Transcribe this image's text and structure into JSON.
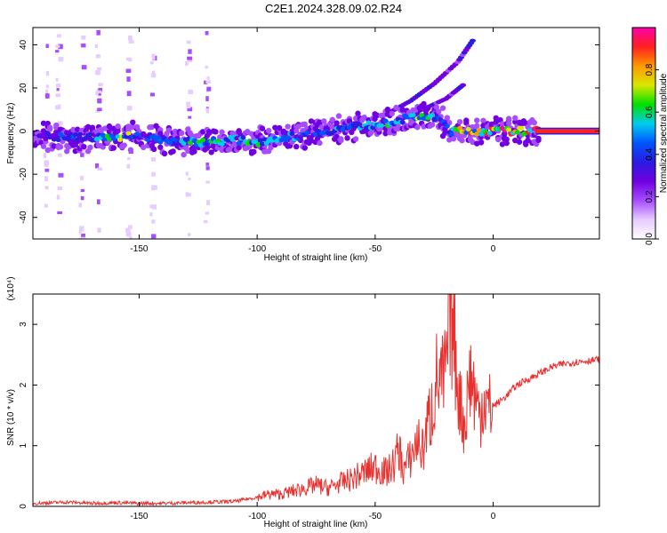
{
  "title": "C2E1.2024.328.09.02.R24",
  "colors": {
    "snr_line": "#e8312f",
    "colormap": [
      "#ffffff",
      "#e6ccff",
      "#a64dff",
      "#7000e0",
      "#2a1ce0",
      "#0055ff",
      "#00ccee",
      "#00e000",
      "#d8e800",
      "#ff9900",
      "#ff2020",
      "#ff00aa"
    ]
  },
  "chart_data": [
    {
      "type": "heatmap",
      "xlabel": "Height of straight line (km)",
      "ylabel": "Frequency (Hz)",
      "xlim": [
        -195,
        45
      ],
      "ylim": [
        -50,
        48
      ],
      "x_ticks": [
        -150,
        -100,
        -50,
        0
      ],
      "x_tick_labels": [
        "-150",
        "-100",
        "-50",
        "0"
      ],
      "y_ticks": [
        -40,
        -20,
        0,
        20,
        40
      ],
      "y_tick_labels": [
        "-40",
        "-20",
        "0",
        "20",
        "40"
      ],
      "colorbar": {
        "label": "Normalized spectral amplitude",
        "range": [
          0,
          1
        ],
        "ticks": [
          0,
          0.2,
          0.4,
          0.6,
          0.8
        ],
        "tick_labels": [
          "0.0",
          "0.2",
          "0.4",
          "0.6",
          "0.8"
        ]
      },
      "main_band": [
        {
          "x": -195,
          "f": -2,
          "amp": 0.35
        },
        {
          "x": -180,
          "f": -3,
          "amp": 0.45
        },
        {
          "x": -170,
          "f": -3,
          "amp": 0.5
        },
        {
          "x": -162,
          "f": -3,
          "amp": 0.85
        },
        {
          "x": -150,
          "f": -2,
          "amp": 0.5
        },
        {
          "x": -140,
          "f": -4,
          "amp": 0.45
        },
        {
          "x": -130,
          "f": -5,
          "amp": 0.55
        },
        {
          "x": -120,
          "f": -5,
          "amp": 0.6
        },
        {
          "x": -110,
          "f": -4,
          "amp": 0.5
        },
        {
          "x": -100,
          "f": -5,
          "amp": 0.65
        },
        {
          "x": -90,
          "f": -3,
          "amp": 0.5
        },
        {
          "x": -80,
          "f": -2,
          "amp": 0.45
        },
        {
          "x": -70,
          "f": 0,
          "amp": 0.45
        },
        {
          "x": -60,
          "f": 2,
          "amp": 0.5
        },
        {
          "x": -50,
          "f": 3,
          "amp": 0.55
        },
        {
          "x": -40,
          "f": 5,
          "amp": 0.55
        },
        {
          "x": -30,
          "f": 7,
          "amp": 0.75
        },
        {
          "x": -22,
          "f": 5,
          "amp": 0.5
        },
        {
          "x": -18,
          "f": 0,
          "amp": 0.6
        },
        {
          "x": -10,
          "f": 0,
          "amp": 0.85
        },
        {
          "x": 0,
          "f": 0,
          "amp": 0.9
        },
        {
          "x": 10,
          "f": 0,
          "amp": 0.9
        },
        {
          "x": 20,
          "f": 0,
          "amp": 0.95
        },
        {
          "x": 30,
          "f": 0,
          "amp": 0.95
        },
        {
          "x": 45,
          "f": 0,
          "amp": 0.95
        }
      ],
      "upper_arcs": [
        {
          "name": "",
          "points": [
            {
              "x": -45,
              "f": 8
            },
            {
              "x": -35,
              "f": 14
            },
            {
              "x": -25,
              "f": 22
            },
            {
              "x": -15,
              "f": 32
            },
            {
              "x": -8,
              "f": 43
            }
          ]
        },
        {
          "name": "",
          "points": [
            {
              "x": -40,
              "f": 5
            },
            {
              "x": -30,
              "f": 10
            },
            {
              "x": -20,
              "f": 15
            },
            {
              "x": -12,
              "f": 22
            }
          ]
        }
      ]
    },
    {
      "type": "line",
      "xlabel": "Height of straight line (km)",
      "ylabel": "SNR (10 * v/v)",
      "y_multiplier": "(x10⁴)",
      "xlim": [
        -195,
        45
      ],
      "ylim": [
        0,
        3.5
      ],
      "x_ticks": [
        -150,
        -100,
        -50,
        0
      ],
      "x_tick_labels": [
        "-150",
        "-100",
        "-50",
        "0"
      ],
      "y_ticks": [
        0,
        1,
        2,
        3
      ],
      "y_tick_labels": [
        "0",
        "1",
        "2",
        "3"
      ],
      "series": [
        {
          "values_x": [
            -195,
            -180,
            -170,
            -160,
            -150,
            -140,
            -130,
            -120,
            -110,
            -100,
            -95,
            -90,
            -85,
            -80,
            -75,
            -70,
            -65,
            -60,
            -55,
            -50,
            -45,
            -42,
            -40,
            -38,
            -35,
            -32,
            -30,
            -28,
            -26,
            -24,
            -22,
            -20,
            -18,
            -16,
            -14,
            -12,
            -10,
            -8,
            -6,
            -4,
            -2,
            0,
            5,
            10,
            15,
            20,
            25,
            30,
            35,
            40,
            45
          ],
          "values_y": [
            0.05,
            0.07,
            0.05,
            0.06,
            0.05,
            0.05,
            0.06,
            0.07,
            0.08,
            0.15,
            0.2,
            0.2,
            0.25,
            0.3,
            0.35,
            0.3,
            0.38,
            0.45,
            0.55,
            0.65,
            0.55,
            0.7,
            0.95,
            0.6,
            0.8,
            1.1,
            0.9,
            1.3,
            1.6,
            2.1,
            2.0,
            2.2,
            3.3,
            2.5,
            1.7,
            1.3,
            2.2,
            1.9,
            1.5,
            1.8,
            1.6,
            1.65,
            1.8,
            2.0,
            2.1,
            2.2,
            2.3,
            2.35,
            2.38,
            2.4,
            2.42
          ]
        }
      ]
    }
  ]
}
